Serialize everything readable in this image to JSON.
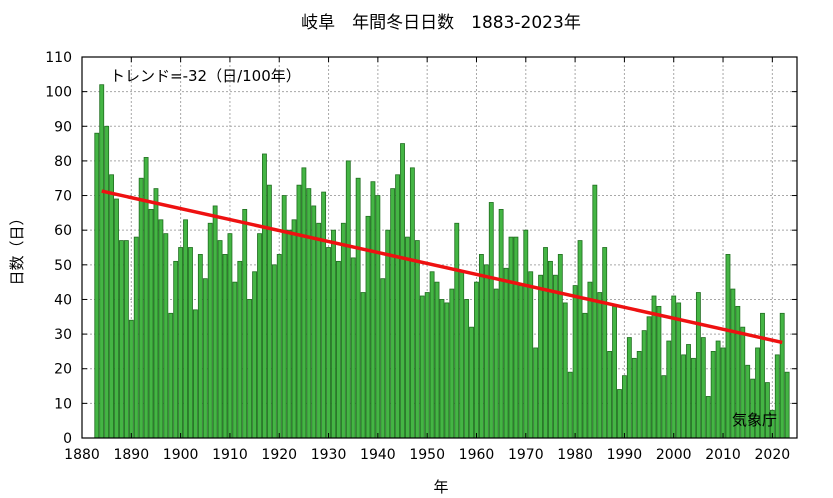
{
  "chart_data": {
    "type": "bar",
    "title": "岐阜　年間冬日日数　1883-2023年",
    "xlabel": "年",
    "ylabel": "日数（日）",
    "x": [
      1883,
      1884,
      1885,
      1886,
      1887,
      1888,
      1889,
      1890,
      1891,
      1892,
      1893,
      1894,
      1895,
      1896,
      1897,
      1898,
      1899,
      1900,
      1901,
      1902,
      1903,
      1904,
      1905,
      1906,
      1907,
      1908,
      1909,
      1910,
      1911,
      1912,
      1913,
      1914,
      1915,
      1916,
      1917,
      1918,
      1919,
      1920,
      1921,
      1922,
      1923,
      1924,
      1925,
      1926,
      1927,
      1928,
      1929,
      1930,
      1931,
      1932,
      1933,
      1934,
      1935,
      1936,
      1937,
      1938,
      1939,
      1940,
      1941,
      1942,
      1943,
      1944,
      1945,
      1946,
      1947,
      1948,
      1949,
      1950,
      1951,
      1952,
      1953,
      1954,
      1955,
      1956,
      1957,
      1958,
      1959,
      1960,
      1961,
      1962,
      1963,
      1964,
      1965,
      1966,
      1967,
      1968,
      1969,
      1970,
      1971,
      1972,
      1973,
      1974,
      1975,
      1976,
      1977,
      1978,
      1979,
      1980,
      1981,
      1982,
      1983,
      1984,
      1985,
      1986,
      1987,
      1988,
      1989,
      1990,
      1991,
      1992,
      1993,
      1994,
      1995,
      1996,
      1997,
      1998,
      1999,
      2000,
      2001,
      2002,
      2003,
      2004,
      2005,
      2006,
      2007,
      2008,
      2009,
      2010,
      2011,
      2012,
      2013,
      2014,
      2015,
      2016,
      2017,
      2018,
      2019,
      2020,
      2021,
      2022,
      2023
    ],
    "values": [
      88,
      102,
      90,
      76,
      69,
      57,
      57,
      34,
      58,
      75,
      81,
      66,
      72,
      63,
      59,
      36,
      51,
      55,
      63,
      55,
      37,
      53,
      46,
      62,
      67,
      57,
      53,
      59,
      45,
      51,
      66,
      40,
      48,
      59,
      82,
      73,
      50,
      53,
      70,
      60,
      63,
      73,
      78,
      72,
      67,
      62,
      71,
      55,
      60,
      51,
      62,
      80,
      52,
      75,
      42,
      64,
      74,
      70,
      46,
      60,
      72,
      76,
      85,
      58,
      78,
      57,
      41,
      42,
      48,
      45,
      40,
      39,
      43,
      62,
      48,
      40,
      32,
      45,
      53,
      50,
      68,
      43,
      66,
      49,
      58,
      58,
      44,
      60,
      48,
      26,
      47,
      55,
      51,
      47,
      53,
      39,
      19,
      44,
      57,
      36,
      45,
      73,
      42,
      55,
      25,
      38,
      14,
      18,
      29,
      23,
      25,
      31,
      35,
      41,
      38,
      18,
      28,
      41,
      39,
      24,
      27,
      23,
      42,
      29,
      12,
      25,
      28,
      26,
      53,
      43,
      38,
      32,
      21,
      17,
      26,
      36,
      16,
      8,
      24,
      36,
      19
    ],
    "trend": {
      "label": "トレンド=-32（日/100年）",
      "start": [
        1884,
        71.3
      ],
      "end": [
        2022,
        27.6
      ]
    },
    "xlim": [
      1880,
      2025
    ],
    "ylim": [
      0,
      110
    ],
    "x_ticks": [
      1880,
      1890,
      1900,
      1910,
      1920,
      1930,
      1940,
      1950,
      1960,
      1970,
      1980,
      1990,
      2000,
      2010,
      2020
    ],
    "y_ticks": [
      0,
      10,
      20,
      30,
      40,
      50,
      60,
      70,
      80,
      90,
      100,
      110
    ],
    "grid": true,
    "colors": {
      "bar_fill": "#44b544",
      "bar_stroke": "#1f6e1f",
      "trend": "#ee1111",
      "grid": "#a8a8a8"
    },
    "source": "気象庁"
  }
}
